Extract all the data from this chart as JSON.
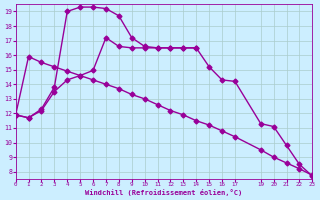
{
  "background_color": "#cceeff",
  "grid_color": "#aacccc",
  "line_color": "#990099",
  "xlabel": "Windchill (Refroidissement éolien,°C)",
  "xlim": [
    0,
    23
  ],
  "ylim": [
    7.5,
    19.5
  ],
  "yticks": [
    8,
    9,
    10,
    11,
    12,
    13,
    14,
    15,
    16,
    17,
    18,
    19
  ],
  "xticks": [
    0,
    1,
    2,
    3,
    4,
    5,
    6,
    7,
    8,
    9,
    10,
    11,
    12,
    13,
    14,
    15,
    16,
    17,
    19,
    20,
    21,
    22,
    23
  ],
  "line_arch_x": [
    0,
    1,
    2,
    3,
    4,
    5,
    6,
    7,
    8,
    9,
    10,
    11,
    12,
    13,
    14,
    15,
    16,
    17,
    19,
    20,
    21,
    22,
    23
  ],
  "line_arch_y": [
    11.9,
    11.7,
    12.3,
    13.8,
    19.0,
    19.3,
    19.3,
    19.2,
    18.7,
    17.2,
    16.6,
    16.5,
    16.5,
    16.5,
    16.5,
    15.2,
    14.3,
    14.2,
    11.3,
    11.1,
    9.8,
    8.5,
    7.7
  ],
  "line_diag_x": [
    0,
    1,
    2,
    3,
    4,
    5,
    6,
    7,
    8,
    9,
    10,
    11,
    12,
    13,
    14,
    15,
    16,
    17,
    19,
    20,
    21,
    22,
    23
  ],
  "line_diag_y": [
    11.9,
    15.9,
    15.5,
    15.2,
    14.9,
    14.6,
    14.3,
    14.0,
    13.7,
    13.3,
    13.0,
    12.6,
    12.2,
    11.9,
    11.5,
    11.2,
    10.8,
    10.4,
    9.5,
    9.0,
    8.6,
    8.2,
    7.75
  ],
  "line_mid_x": [
    0,
    1,
    2,
    3,
    4,
    5,
    6,
    7,
    8,
    9,
    10,
    11,
    12,
    13,
    14
  ],
  "line_mid_y": [
    11.9,
    11.7,
    12.2,
    13.5,
    14.3,
    14.6,
    14.95,
    17.2,
    16.6,
    16.5,
    16.5,
    16.5,
    16.5,
    16.5,
    16.5
  ],
  "marker": "D",
  "markersize": 2.5,
  "linewidth": 1.0
}
